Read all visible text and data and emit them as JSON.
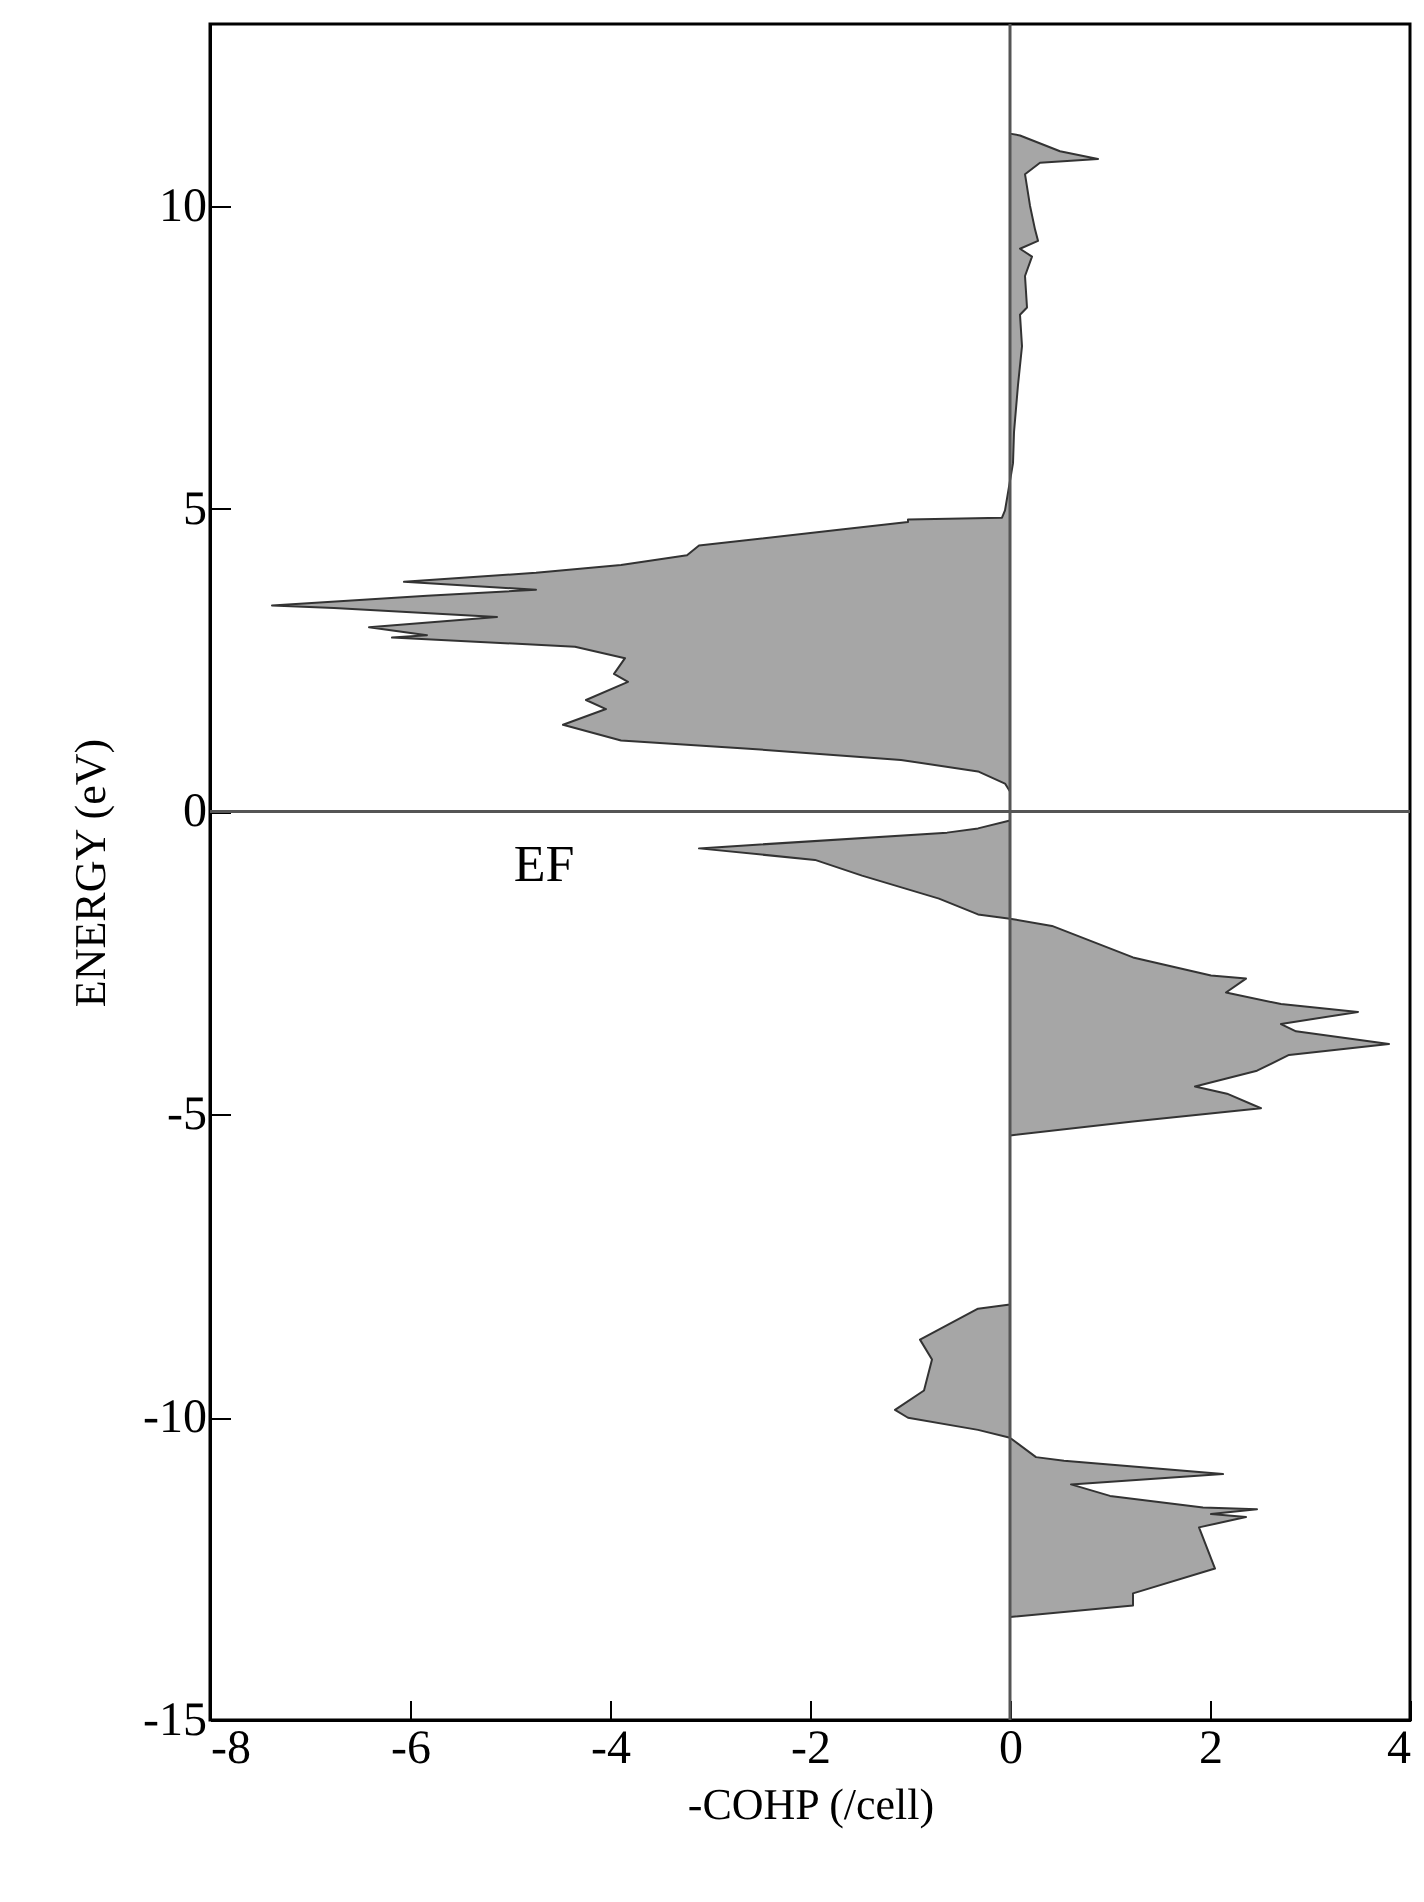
{
  "chart_data": {
    "type": "area",
    "orientation": "horizontal",
    "xlabel": "-COHP (/cell)",
    "ylabel": "ENERGY (eV)",
    "xlim": [
      -8,
      4
    ],
    "xticks": [
      -8,
      -6,
      -4,
      -2,
      0,
      2,
      4
    ],
    "ylim": [
      -15,
      13
    ],
    "yticks": [
      -15,
      -10,
      -5,
      0,
      5,
      10
    ],
    "grid": false,
    "ref_lines": [
      {
        "axis": "y",
        "value": 0,
        "label": "EF"
      },
      {
        "axis": "x",
        "value": 0
      }
    ],
    "series": [
      {
        "color": "#a6a6a6",
        "x": [
          13,
          11.19,
          11.16,
          10.9,
          10.77,
          10.71,
          10.52,
          10,
          9.61,
          9.42,
          9.29,
          9.16,
          8.84,
          8.32,
          8.2,
          7.68,
          7.04,
          6.26,
          5.75,
          4.97,
          4.85,
          4.82,
          4.78,
          4.65,
          4.39,
          4.23,
          4.07,
          3.94,
          3.79,
          3.66,
          3.56,
          3.4,
          3.36,
          3.21,
          3.04,
          2.91,
          2.87,
          2.72,
          2.53,
          2.27,
          2.14,
          1.84,
          1.69,
          1.43,
          1.17,
          1.04,
          0.85,
          0.66,
          0.46,
          0.33,
          -0.15,
          -0.28,
          -0.35,
          -0.61,
          -0.8,
          -1.06,
          -1.44,
          -1.7,
          -1.77,
          -1.89,
          -2.41,
          -2.71,
          -2.76,
          -2.99,
          -3.18,
          -3.31,
          -3.51,
          -3.63,
          -3.84,
          -4.02,
          -4.28,
          -4.54,
          -4.66,
          -4.9,
          -5.12,
          -5.35,
          -8.14,
          -8.21,
          -8.72,
          -9.05,
          -9.56,
          -9.88,
          -10.01,
          -10.21,
          -10.34,
          -10.66,
          -10.72,
          -10.94,
          -11.11,
          -11.3,
          -11.49,
          -11.52,
          -11.6,
          -11.65,
          -11.82,
          -12.5,
          -12.91,
          -13.11,
          -13.3,
          -15
        ],
        "values": [
          0,
          0,
          0.1,
          0.5,
          0.88,
          0.3,
          0.15,
          0.2,
          0.25,
          0.28,
          0.1,
          0.22,
          0.15,
          0.17,
          0.1,
          0.12,
          0.08,
          0.04,
          0.03,
          -0.05,
          -0.08,
          -1.02,
          -1.02,
          -1.71,
          -3.11,
          -3.23,
          -3.89,
          -4.74,
          -6.06,
          -4.74,
          -5.83,
          -7.38,
          -6.76,
          -5.13,
          -6.41,
          -5.83,
          -6.18,
          -4.35,
          -3.85,
          -3.96,
          -3.82,
          -4.24,
          -4.04,
          -4.47,
          -3.89,
          -2.65,
          -1.09,
          -0.32,
          -0.05,
          0,
          0,
          -0.32,
          -0.63,
          -3.11,
          -1.95,
          -1.48,
          -0.71,
          -0.32,
          0,
          0.42,
          1.23,
          2.01,
          2.36,
          2.16,
          2.71,
          3.48,
          2.71,
          2.86,
          3.79,
          2.79,
          2.47,
          1.85,
          2.17,
          2.51,
          1.23,
          0,
          0,
          -0.32,
          -0.9,
          -0.78,
          -0.86,
          -1.15,
          -1.02,
          -0.32,
          0,
          0.26,
          0.54,
          2.13,
          0.61,
          1,
          1.93,
          2.47,
          2.01,
          2.36,
          1.89,
          2.05,
          1.23,
          1.23,
          0,
          0
        ]
      }
    ]
  }
}
